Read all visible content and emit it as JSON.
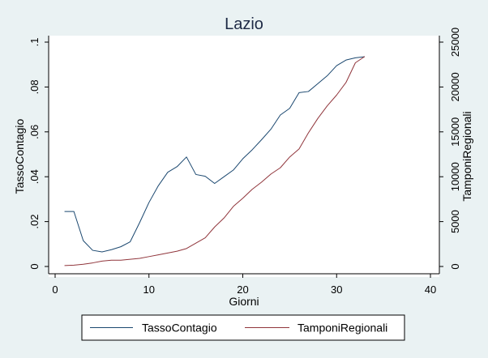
{
  "chart_data": {
    "type": "line",
    "title": "Lazio",
    "xlabel": "Giorni",
    "ylabel_left": "TassoContagio",
    "ylabel_right": "TamponiRegionali",
    "xlim": [
      0,
      40
    ],
    "ylim_left": [
      0,
      0.1
    ],
    "ylim_right": [
      0,
      25000
    ],
    "x_ticks": [
      "0",
      "10",
      "20",
      "30",
      "40"
    ],
    "y_left_ticks": [
      "0",
      ".02",
      ".04",
      ".06",
      ".08",
      ".1"
    ],
    "y_right_ticks": [
      "0",
      "5000",
      "10000",
      "15000",
      "20000",
      "25000"
    ],
    "grid": false,
    "legend_position": "bottom",
    "colors": {
      "plot_bg": "#ffffff",
      "page_bg": "#eaf2f3",
      "title": "#1e2a45",
      "tasso": "#1a476f",
      "tamponi": "#90353b"
    },
    "series": [
      {
        "name": "TassoContagio",
        "axis": "left",
        "x": [
          1,
          2,
          3,
          4,
          5,
          6,
          7,
          8,
          9,
          10,
          11,
          12,
          13,
          14,
          15,
          16,
          17,
          18,
          19,
          20,
          21,
          22,
          23,
          24,
          25,
          26,
          27,
          28,
          29,
          30,
          31,
          32,
          33
        ],
        "values": [
          0.0245,
          0.0245,
          0.0115,
          0.0072,
          0.0065,
          0.0075,
          0.0088,
          0.011,
          0.0195,
          0.0285,
          0.036,
          0.042,
          0.0445,
          0.0488,
          0.041,
          0.0402,
          0.037,
          0.04,
          0.043,
          0.048,
          0.052,
          0.0565,
          0.0612,
          0.0675,
          0.0705,
          0.0775,
          0.078,
          0.0815,
          0.085,
          0.0895,
          0.092,
          0.093,
          0.0935
        ]
      },
      {
        "name": "TamponiRegionali",
        "axis": "right",
        "x": [
          1,
          2,
          3,
          4,
          5,
          6,
          7,
          8,
          9,
          10,
          11,
          12,
          13,
          14,
          15,
          16,
          17,
          18,
          19,
          20,
          21,
          22,
          23,
          24,
          25,
          26,
          27,
          28,
          29,
          30,
          31,
          32,
          33
        ],
        "values": [
          100,
          150,
          250,
          400,
          600,
          700,
          700,
          800,
          900,
          1100,
          1300,
          1500,
          1700,
          2000,
          2600,
          3200,
          4400,
          5400,
          6700,
          7600,
          8600,
          9400,
          10300,
          11000,
          12200,
          13100,
          14900,
          16500,
          17900,
          19100,
          20500,
          22700,
          23400
        ]
      }
    ]
  }
}
